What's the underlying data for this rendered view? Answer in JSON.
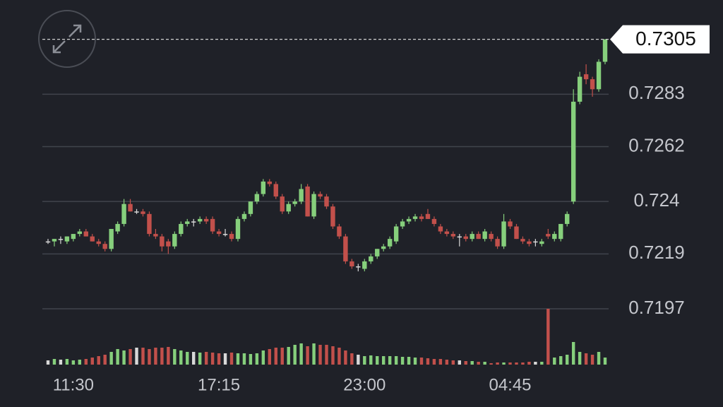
{
  "chart_data": {
    "type": "candlestick",
    "last_price": 0.7305,
    "categories": [
      null,
      null,
      null,
      null,
      "11:30",
      null,
      null,
      null,
      null,
      null,
      null,
      null,
      null,
      null,
      null,
      null,
      null,
      null,
      null,
      null,
      null,
      null,
      null,
      null,
      null,
      null,
      null,
      "17:15",
      null,
      null,
      null,
      null,
      null,
      null,
      null,
      null,
      null,
      null,
      null,
      null,
      null,
      null,
      null,
      null,
      null,
      null,
      null,
      null,
      null,
      null,
      "23:00",
      null,
      null,
      null,
      null,
      null,
      null,
      null,
      null,
      null,
      null,
      null,
      null,
      null,
      null,
      null,
      null,
      null,
      null,
      null,
      null,
      null,
      null,
      "04:45",
      null,
      null,
      null,
      null,
      null,
      null,
      null,
      null,
      null,
      null,
      null,
      null,
      null,
      null,
      null
    ],
    "open": [
      0.7224,
      0.7224,
      0.7225,
      0.7224,
      0.7225,
      0.7227,
      0.7228,
      0.7226,
      0.7224,
      0.7223,
      0.7221,
      0.7228,
      0.7231,
      0.7239,
      0.7236,
      0.7236,
      0.7235,
      0.7227,
      0.7226,
      0.7224,
      0.7222,
      0.7227,
      0.7231,
      0.7232,
      0.7232,
      0.7233,
      0.7233,
      0.7228,
      0.7227,
      0.7227,
      0.7225,
      0.7233,
      0.7235,
      0.724,
      0.7243,
      0.7248,
      0.7247,
      0.7242,
      0.7236,
      0.7239,
      0.724,
      0.7246,
      0.7234,
      0.7243,
      0.7242,
      0.7238,
      0.723,
      0.7226,
      0.7216,
      0.7214,
      0.7213,
      0.7216,
      0.7218,
      0.7221,
      0.7222,
      0.7224,
      0.723,
      0.7232,
      0.7233,
      0.7234,
      0.7235,
      0.7233,
      0.723,
      0.7228,
      0.7227,
      0.7226,
      0.7226,
      0.7225,
      0.7227,
      0.7225,
      0.7227,
      0.7225,
      0.7222,
      0.7232,
      0.723,
      0.7225,
      0.7224,
      0.7224,
      0.7223,
      0.7227,
      0.7225,
      0.7225,
      0.7231,
      0.724,
      0.728,
      0.7291,
      0.7289,
      0.7285,
      0.7296
    ],
    "high": [
      0.7225,
      0.7225,
      0.7226,
      0.7226,
      0.7227,
      0.7229,
      0.7229,
      0.7227,
      0.7225,
      0.7224,
      0.7229,
      0.7232,
      0.7241,
      0.7241,
      0.7237,
      0.7237,
      0.7236,
      0.7229,
      0.7227,
      0.7225,
      0.7228,
      0.7232,
      0.7233,
      0.7233,
      0.7234,
      0.7234,
      0.7234,
      0.7229,
      0.7229,
      0.7228,
      0.7234,
      0.7236,
      0.724,
      0.7244,
      0.7249,
      0.7249,
      0.7248,
      0.7243,
      0.724,
      0.7241,
      0.7247,
      0.7247,
      0.7244,
      0.7244,
      0.7243,
      0.7239,
      0.7231,
      0.7227,
      0.7217,
      0.7215,
      0.7217,
      0.7219,
      0.7221,
      0.7223,
      0.7226,
      0.7231,
      0.7233,
      0.7234,
      0.7235,
      0.7235,
      0.7237,
      0.7234,
      0.7231,
      0.7229,
      0.7228,
      0.7227,
      0.7227,
      0.7228,
      0.7228,
      0.7229,
      0.7228,
      0.7226,
      0.7235,
      0.7233,
      0.7231,
      0.7226,
      0.7225,
      0.7225,
      0.7225,
      0.7229,
      0.7228,
      0.7231,
      0.7236,
      0.7285,
      0.7292,
      0.7295,
      0.729,
      0.7297,
      0.7305
    ],
    "low": [
      0.7223,
      0.7222,
      0.7223,
      0.7223,
      0.7224,
      0.7226,
      0.7226,
      0.7224,
      0.7222,
      0.722,
      0.722,
      0.7227,
      0.723,
      0.7236,
      0.7235,
      0.7234,
      0.7226,
      0.7225,
      0.722,
      0.7219,
      0.7221,
      0.7226,
      0.723,
      0.723,
      0.7231,
      0.7231,
      0.7227,
      0.7226,
      0.7226,
      0.7224,
      0.7224,
      0.7232,
      0.7234,
      0.7239,
      0.7242,
      0.7246,
      0.7241,
      0.7235,
      0.7235,
      0.7238,
      0.7239,
      0.7234,
      0.7233,
      0.7241,
      0.7237,
      0.7229,
      0.7225,
      0.7215,
      0.7213,
      0.7212,
      0.7212,
      0.7215,
      0.7217,
      0.722,
      0.7221,
      0.7223,
      0.7229,
      0.7231,
      0.7232,
      0.7232,
      0.7233,
      0.723,
      0.7227,
      0.7226,
      0.7225,
      0.7222,
      0.7224,
      0.7224,
      0.7225,
      0.7224,
      0.7224,
      0.7221,
      0.7221,
      0.7229,
      0.7225,
      0.7223,
      0.7222,
      0.7222,
      0.7222,
      0.7225,
      0.7224,
      0.7224,
      0.723,
      0.7239,
      0.7279,
      0.7287,
      0.7282,
      0.7284,
      0.7295
    ],
    "close": [
      0.7224,
      0.7225,
      0.7225,
      0.7226,
      0.7227,
      0.7228,
      0.7226,
      0.7224,
      0.7223,
      0.7221,
      0.7229,
      0.7231,
      0.7239,
      0.7236,
      0.7236,
      0.7235,
      0.7227,
      0.7226,
      0.7222,
      0.7222,
      0.7227,
      0.7231,
      0.7232,
      0.7232,
      0.7233,
      0.7232,
      0.7228,
      0.7227,
      0.7227,
      0.7225,
      0.7233,
      0.7235,
      0.724,
      0.7243,
      0.7248,
      0.7247,
      0.7242,
      0.7236,
      0.7239,
      0.724,
      0.7245,
      0.7234,
      0.7243,
      0.7242,
      0.7238,
      0.723,
      0.7226,
      0.7216,
      0.7214,
      0.7214,
      0.7216,
      0.7218,
      0.7221,
      0.7222,
      0.7225,
      0.723,
      0.7232,
      0.7233,
      0.7234,
      0.7233,
      0.7233,
      0.7231,
      0.7228,
      0.7227,
      0.7226,
      0.7226,
      0.7225,
      0.7227,
      0.7225,
      0.7228,
      0.7225,
      0.7222,
      0.7232,
      0.723,
      0.7225,
      0.7224,
      0.7223,
      0.7224,
      0.7224,
      0.7226,
      0.7227,
      0.7231,
      0.7235,
      0.728,
      0.729,
      0.7289,
      0.7285,
      0.7296,
      0.7305
    ],
    "volume": [
      6,
      8,
      7,
      8,
      6,
      7,
      8,
      10,
      12,
      14,
      18,
      22,
      20,
      22,
      24,
      24,
      22,
      24,
      24,
      25,
      22,
      20,
      18,
      18,
      17,
      18,
      17,
      16,
      16,
      17,
      16,
      16,
      15,
      16,
      20,
      22,
      24,
      24,
      25,
      28,
      30,
      26,
      30,
      28,
      28,
      26,
      24,
      20,
      16,
      14,
      12,
      13,
      12,
      12,
      12,
      12,
      11,
      11,
      10,
      10,
      9,
      8,
      8,
      7,
      6,
      6,
      5,
      5,
      4,
      4,
      2,
      3,
      3,
      3,
      3,
      3,
      4,
      4,
      4,
      79,
      10,
      12,
      14,
      32,
      18,
      16,
      14,
      18,
      10
    ],
    "vlim": [
      0,
      80
    ],
    "ylim": [
      0.7197,
      0.731
    ],
    "yticks": [
      0.7197,
      0.7219,
      0.724,
      0.7262,
      0.7283
    ],
    "grid": true,
    "up_color": "#86cf7c",
    "down_color": "#c2504b"
  }
}
